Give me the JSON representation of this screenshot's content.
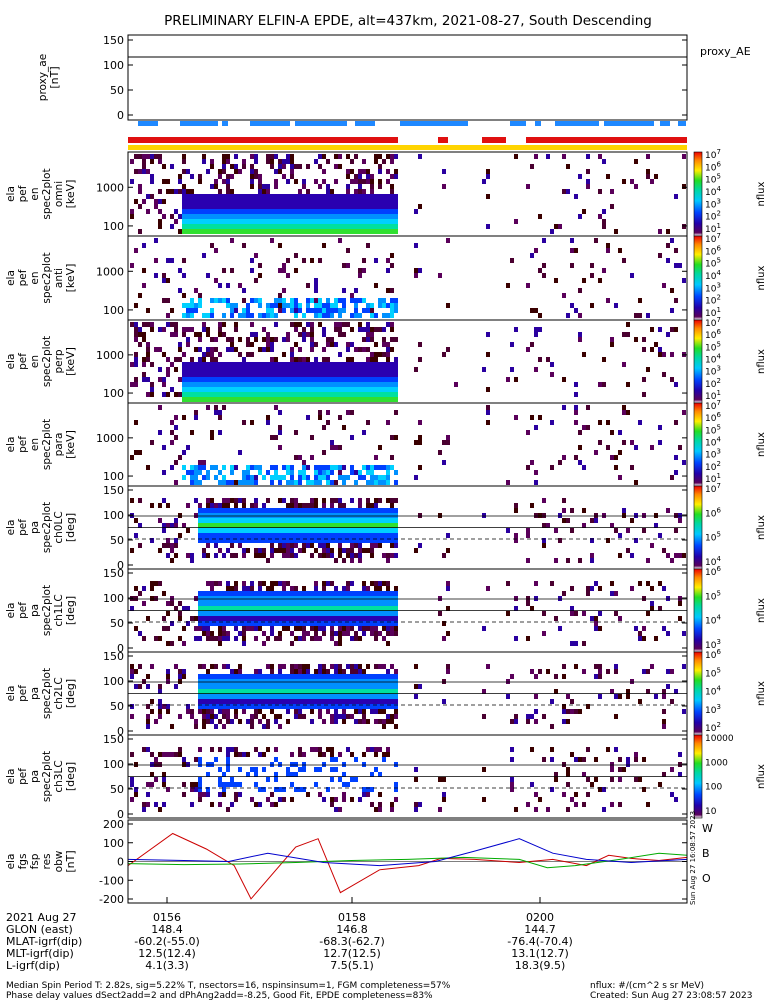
{
  "title": "PRELIMINARY ELFIN-A EPDE, alt=437km, 2021-08-27, South Descending",
  "panels": [
    {
      "kind": "line",
      "ylabel": [
        "proxy_ae",
        "[nT]"
      ],
      "ticks": [
        "150",
        "100",
        "50",
        "0"
      ],
      "right_label": "proxy_AE"
    },
    {
      "kind": "energy",
      "ylabel": [
        "ela",
        "pef",
        "en",
        "spec2plot",
        "omni",
        "[keV]"
      ],
      "ticks": [
        "1000",
        "100"
      ],
      "cbar_ticks": [
        "10^7",
        "10^6",
        "10^5",
        "10^4",
        "10^3",
        "10^2",
        "10^1"
      ],
      "cbar_label": "nflux"
    },
    {
      "kind": "energy",
      "ylabel": [
        "ela",
        "pef",
        "en",
        "spec2plot",
        "anti",
        "[keV]"
      ],
      "ticks": [
        "1000",
        "100"
      ],
      "cbar_ticks": [
        "10^7",
        "10^6",
        "10^5",
        "10^4",
        "10^3",
        "10^2",
        "10^1"
      ],
      "cbar_label": "nflux"
    },
    {
      "kind": "energy",
      "ylabel": [
        "ela",
        "pef",
        "en",
        "spec2plot",
        "perp",
        "[keV]"
      ],
      "ticks": [
        "1000",
        "100"
      ],
      "cbar_ticks": [
        "10^7",
        "10^6",
        "10^5",
        "10^4",
        "10^3",
        "10^2",
        "10^1"
      ],
      "cbar_label": "nflux"
    },
    {
      "kind": "energy",
      "ylabel": [
        "ela",
        "pef",
        "en",
        "spec2plot",
        "para",
        "[keV]"
      ],
      "ticks": [
        "1000",
        "100"
      ],
      "cbar_ticks": [
        "10^7",
        "10^6",
        "10^5",
        "10^4",
        "10^3",
        "10^2",
        "10^1"
      ],
      "cbar_label": "nflux"
    },
    {
      "kind": "pitch",
      "ylabel": [
        "ela",
        "pef",
        "pa",
        "spec2plot",
        "ch0LC",
        "[deg]"
      ],
      "ticks": [
        "150",
        "100",
        "50",
        "0"
      ],
      "cbar_ticks": [
        "10^7",
        "10^6",
        "10^5",
        "10^4"
      ],
      "cbar_label": "nflux"
    },
    {
      "kind": "pitch",
      "ylabel": [
        "ela",
        "pef",
        "pa",
        "spec2plot",
        "ch1LC",
        "[deg]"
      ],
      "ticks": [
        "150",
        "100",
        "50",
        "0"
      ],
      "cbar_ticks": [
        "10^6",
        "10^5",
        "10^4",
        "10^3"
      ],
      "cbar_label": "nflux"
    },
    {
      "kind": "pitch",
      "ylabel": [
        "ela",
        "pef",
        "pa",
        "spec2plot",
        "ch2LC",
        "[deg]"
      ],
      "ticks": [
        "150",
        "100",
        "50",
        "0"
      ],
      "cbar_ticks": [
        "10^6",
        "10^5",
        "10^4",
        "10^3",
        "10^2"
      ],
      "cbar_label": "nflux"
    },
    {
      "kind": "pitch",
      "ylabel": [
        "ela",
        "pef",
        "pa",
        "spec2plot",
        "ch3LC",
        "[deg]"
      ],
      "ticks": [
        "150",
        "100",
        "50",
        "0"
      ],
      "cbar_ticks": [
        "10000",
        "1000",
        "100",
        "10"
      ],
      "cbar_label": "nflux"
    },
    {
      "kind": "line",
      "ylabel": [
        "ela",
        "fgs",
        "fsp",
        "res",
        "obw",
        "[nT]"
      ],
      "ticks": [
        "200",
        "100",
        "0",
        "-100",
        "-200"
      ],
      "legend": [
        {
          "label": "W",
          "color": "#cc0000"
        },
        {
          "label": "B",
          "color": "#00aa00"
        },
        {
          "label": "O",
          "color": "#0000cc"
        }
      ]
    }
  ],
  "timestamp_vertical": "Sun Aug 27 16:08:57 2023",
  "chart_data": {
    "type": "spectrogram",
    "title": "PRELIMINARY ELFIN-A EPDE, alt=437km, 2021-08-27, South Descending",
    "time_ticks": [
      "0156",
      "0158",
      "0200"
    ],
    "proxy_ae": {
      "ylim": [
        0,
        150
      ],
      "value": 115
    },
    "energy_ylim_keV": [
      60,
      7000
    ],
    "pitch_ylim_deg": [
      0,
      180
    ],
    "pitch_reference_lines_deg": [
      65,
      90,
      115
    ],
    "fgs_ylim": [
      -200,
      200
    ],
    "fgs_series": [
      {
        "name": "W",
        "color": "#cc0000",
        "t": [
          0.0,
          0.08,
          0.14,
          0.19,
          0.22,
          0.3,
          0.34,
          0.38,
          0.45,
          0.52,
          0.56,
          0.62,
          0.7,
          0.76,
          0.82,
          0.86,
          0.9,
          0.95,
          1.0
        ],
        "values": [
          -20,
          135,
          60,
          -20,
          -180,
          70,
          110,
          -150,
          -40,
          -20,
          15,
          10,
          -5,
          10,
          -20,
          30,
          15,
          5,
          20
        ]
      },
      {
        "name": "B",
        "color": "#00aa00",
        "t": [
          0.0,
          0.1,
          0.2,
          0.3,
          0.4,
          0.5,
          0.6,
          0.7,
          0.75,
          0.8,
          0.88,
          0.95,
          1.0
        ],
        "values": [
          -10,
          -15,
          -12,
          -5,
          5,
          10,
          20,
          10,
          -30,
          -20,
          10,
          40,
          30
        ]
      },
      {
        "name": "O",
        "color": "#0000cc",
        "t": [
          0.0,
          0.1,
          0.18,
          0.25,
          0.35,
          0.45,
          0.55,
          0.62,
          0.7,
          0.76,
          0.82,
          0.9,
          1.0
        ],
        "values": [
          10,
          5,
          0,
          40,
          -5,
          -20,
          0,
          50,
          110,
          40,
          10,
          -5,
          10
        ]
      }
    ]
  },
  "orbit_table": {
    "rows": [
      {
        "label": "2021 Aug 27",
        "values": [
          "0156",
          "0158",
          "0200"
        ]
      },
      {
        "label": "GLON (east)",
        "values": [
          "148.4",
          "146.8",
          "144.7"
        ]
      },
      {
        "label": "MLAT-igrf(dip)",
        "values": [
          "-60.2(-55.0)",
          "-68.3(-62.7)",
          "-76.4(-70.4)"
        ]
      },
      {
        "label": "MLT-igrf(dip)",
        "values": [
          "12.5(12.4)",
          "12.7(12.5)",
          "13.1(12.7)"
        ]
      },
      {
        "label": "L-igrf(dip)",
        "values": [
          "4.1(3.3)",
          "7.5(5.1)",
          "18.3(9.5)"
        ]
      }
    ]
  },
  "footer": {
    "line1_left": "Median Spin Period T: 2.82s, sig=5.22% T, nsectors=16, nspinsinsum=1, FGM completeness=57%",
    "line2_left": "Phase delay values dSect2add=2 and dPhAng2add=-8.25, Good Fit, EPDE completeness=83%",
    "line1_right": "nflux: #/(cm^2 s sr MeV)",
    "line2_right": "Created: Sun Aug 27 23:08:57 2023"
  }
}
